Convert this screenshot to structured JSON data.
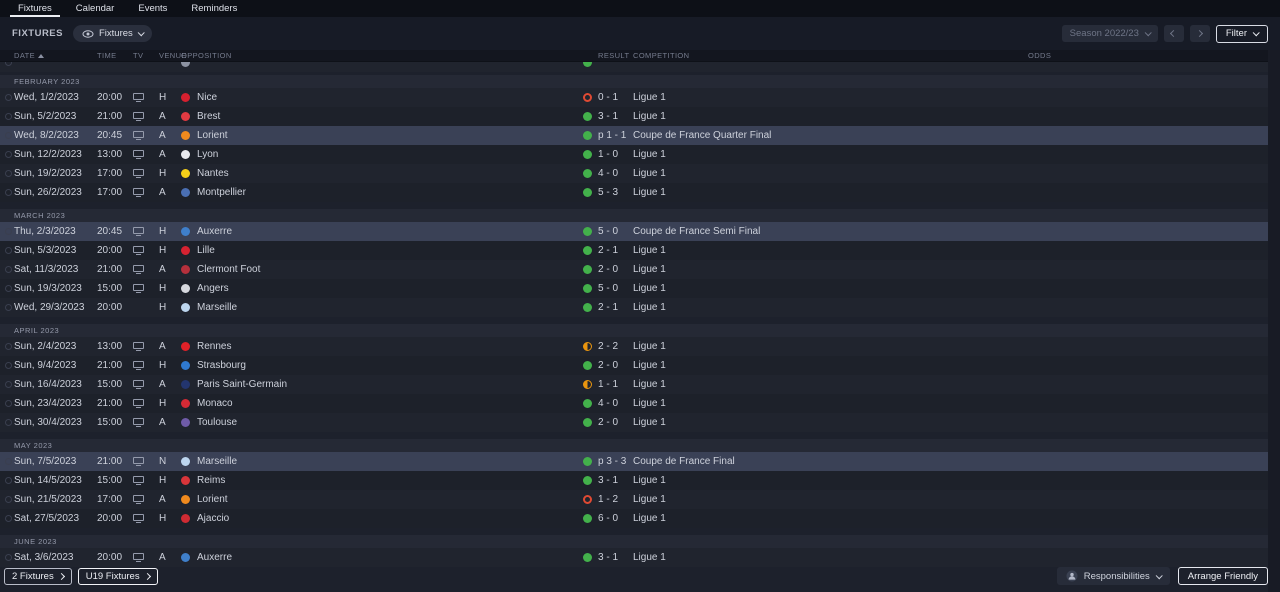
{
  "tabs": {
    "items": [
      {
        "label": "Fixtures",
        "active": true
      },
      {
        "label": "Calendar",
        "active": false
      },
      {
        "label": "Events",
        "active": false
      },
      {
        "label": "Reminders",
        "active": false
      }
    ]
  },
  "toolbar": {
    "title": "FIXTURES",
    "view_dropdown": "Fixtures",
    "season": "Season 2022/23",
    "filter": "Filter"
  },
  "table": {
    "columns": [
      "DATE",
      "TIME",
      "TV",
      "VENUE",
      "OPPOSITION",
      "RESULT",
      "COMPETITION",
      "ODDS"
    ],
    "partial_top_row": {
      "badge": "#8d93a3",
      "result_type": "win"
    },
    "sections": [
      {
        "month": "FEBRUARY 2023",
        "rows": [
          {
            "date": "Wed, 1/2/2023",
            "time": "20:00",
            "tv": true,
            "venue": "H",
            "team": "Nice",
            "badge": "#d5202f",
            "result_type": "loss",
            "result": "0 - 1",
            "competition": "Ligue 1",
            "highlight": false
          },
          {
            "date": "Sun, 5/2/2023",
            "time": "21:00",
            "tv": true,
            "venue": "A",
            "team": "Brest",
            "badge": "#e03a42",
            "result_type": "win",
            "result": "3 - 1",
            "competition": "Ligue 1",
            "highlight": false
          },
          {
            "date": "Wed, 8/2/2023",
            "time": "20:45",
            "tv": true,
            "venue": "A",
            "team": "Lorient",
            "badge": "#f08a1e",
            "result_type": "win",
            "result": "p 1 - 1",
            "competition": "Coupe de France Quarter Final",
            "highlight": true
          },
          {
            "date": "Sun, 12/2/2023",
            "time": "13:00",
            "tv": true,
            "venue": "A",
            "team": "Lyon",
            "badge": "#e8e9ee",
            "result_type": "win",
            "result": "1 - 0",
            "competition": "Ligue 1",
            "highlight": false
          },
          {
            "date": "Sun, 19/2/2023",
            "time": "17:00",
            "tv": true,
            "venue": "H",
            "team": "Nantes",
            "badge": "#f6d019",
            "result_type": "win",
            "result": "4 - 0",
            "competition": "Ligue 1",
            "highlight": false
          },
          {
            "date": "Sun, 26/2/2023",
            "time": "17:00",
            "tv": true,
            "venue": "A",
            "team": "Montpellier",
            "badge": "#4a6fb3",
            "result_type": "win",
            "result": "5 - 3",
            "competition": "Ligue 1",
            "highlight": false
          }
        ]
      },
      {
        "month": "MARCH 2023",
        "rows": [
          {
            "date": "Thu, 2/3/2023",
            "time": "20:45",
            "tv": true,
            "venue": "H",
            "team": "Auxerre",
            "badge": "#3f7fca",
            "result_type": "win",
            "result": "5 - 0",
            "competition": "Coupe de France Semi Final",
            "highlight": true
          },
          {
            "date": "Sun, 5/3/2023",
            "time": "20:00",
            "tv": true,
            "venue": "H",
            "team": "Lille",
            "badge": "#d52231",
            "result_type": "win",
            "result": "2 - 1",
            "competition": "Ligue 1",
            "highlight": false
          },
          {
            "date": "Sat, 11/3/2023",
            "time": "21:00",
            "tv": true,
            "venue": "A",
            "team": "Clermont Foot",
            "badge": "#b5303c",
            "result_type": "win",
            "result": "2 - 0",
            "competition": "Ligue 1",
            "highlight": false
          },
          {
            "date": "Sun, 19/3/2023",
            "time": "15:00",
            "tv": true,
            "venue": "H",
            "team": "Angers",
            "badge": "#d6d8de",
            "result_type": "win",
            "result": "5 - 0",
            "competition": "Ligue 1",
            "highlight": false
          },
          {
            "date": "Wed, 29/3/2023",
            "time": "20:00",
            "tv": false,
            "venue": "H",
            "team": "Marseille",
            "badge": "#bcd5ee",
            "result_type": "win",
            "result": "2 - 1",
            "competition": "Ligue 1",
            "highlight": false
          }
        ]
      },
      {
        "month": "APRIL 2023",
        "rows": [
          {
            "date": "Sun, 2/4/2023",
            "time": "13:00",
            "tv": true,
            "venue": "A",
            "team": "Rennes",
            "badge": "#e02128",
            "result_type": "draw",
            "result": "2 - 2",
            "competition": "Ligue 1",
            "highlight": false
          },
          {
            "date": "Sun, 9/4/2023",
            "time": "21:00",
            "tv": true,
            "venue": "H",
            "team": "Strasbourg",
            "badge": "#2f79d0",
            "result_type": "win",
            "result": "2 - 0",
            "competition": "Ligue 1",
            "highlight": false
          },
          {
            "date": "Sun, 16/4/2023",
            "time": "15:00",
            "tv": true,
            "venue": "A",
            "team": "Paris Saint-Germain",
            "badge": "#23356e",
            "result_type": "draw",
            "result": "1 - 1",
            "competition": "Ligue 1",
            "highlight": false
          },
          {
            "date": "Sun, 23/4/2023",
            "time": "21:00",
            "tv": true,
            "venue": "H",
            "team": "Monaco",
            "badge": "#d42a35",
            "result_type": "win",
            "result": "4 - 0",
            "competition": "Ligue 1",
            "highlight": false
          },
          {
            "date": "Sun, 30/4/2023",
            "time": "15:00",
            "tv": true,
            "venue": "A",
            "team": "Toulouse",
            "badge": "#6f5ba8",
            "result_type": "win",
            "result": "2 - 0",
            "competition": "Ligue 1",
            "highlight": false
          }
        ]
      },
      {
        "month": "MAY 2023",
        "rows": [
          {
            "date": "Sun, 7/5/2023",
            "time": "21:00",
            "tv": true,
            "venue": "N",
            "team": "Marseille",
            "badge": "#bcd5ee",
            "result_type": "win",
            "result": "p 3 - 3",
            "competition": "Coupe de France Final",
            "highlight": true
          },
          {
            "date": "Sun, 14/5/2023",
            "time": "15:00",
            "tv": true,
            "venue": "H",
            "team": "Reims",
            "badge": "#d8353a",
            "result_type": "win",
            "result": "3 - 1",
            "competition": "Ligue 1",
            "highlight": false
          },
          {
            "date": "Sun, 21/5/2023",
            "time": "17:00",
            "tv": true,
            "venue": "A",
            "team": "Lorient",
            "badge": "#f08a1e",
            "result_type": "loss",
            "result": "1 - 2",
            "competition": "Ligue 1",
            "highlight": false
          },
          {
            "date": "Sat, 27/5/2023",
            "time": "20:00",
            "tv": true,
            "venue": "H",
            "team": "Ajaccio",
            "badge": "#cf2b33",
            "result_type": "win",
            "result": "6 - 0",
            "competition": "Ligue 1",
            "highlight": false
          }
        ]
      },
      {
        "month": "JUNE 2023",
        "rows": [
          {
            "date": "Sat, 3/6/2023",
            "time": "20:00",
            "tv": true,
            "venue": "A",
            "team": "Auxerre",
            "badge": "#3f7fca",
            "result_type": "win",
            "result": "3 - 1",
            "competition": "Ligue 1",
            "highlight": false
          }
        ]
      }
    ]
  },
  "footer": {
    "fixtures_button": "2 Fixtures",
    "u19_button": "U19 Fixtures",
    "responsibilities": "Responsibilities",
    "arrange_friendly": "Arrange Friendly"
  },
  "colors": {
    "win": "#43b14b",
    "loss": "#e04a33",
    "draw": "#e9950f",
    "highlight_row": "#3a4156"
  }
}
